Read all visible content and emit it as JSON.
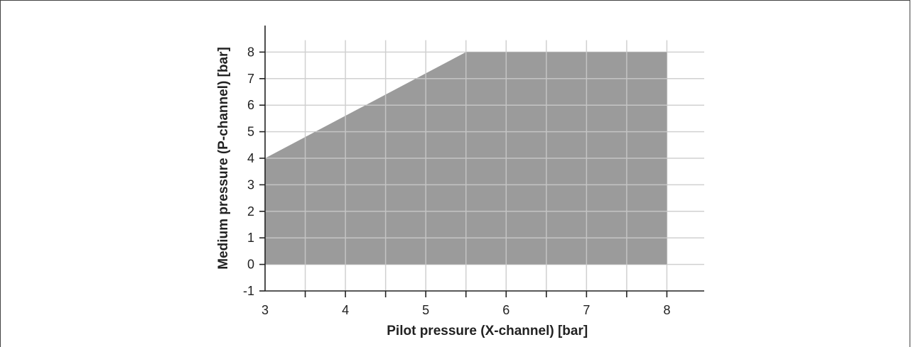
{
  "chart_data": {
    "type": "area",
    "title": "",
    "xlabel": "Pilot pressure (X-channel) [bar]",
    "ylabel": "Medium pressure (P-channel) [bar]",
    "xlim": [
      3,
      8.5
    ],
    "ylim": [
      -1,
      9
    ],
    "x_ticks": [
      3,
      4,
      5,
      6,
      7,
      8
    ],
    "x_tick_labels": [
      "3",
      "4",
      "5",
      "6",
      "7",
      "8"
    ],
    "y_ticks": [
      -1,
      0,
      1,
      2,
      3,
      4,
      5,
      6,
      7,
      8
    ],
    "y_tick_labels": [
      "-1",
      "0",
      "1",
      "2",
      "3",
      "4",
      "5",
      "6",
      "7",
      "8"
    ],
    "x_grid_step": 0.5,
    "grid": true,
    "region": {
      "fill_color": "#9b9b9b",
      "points": [
        {
          "x": 3,
          "y": 0
        },
        {
          "x": 3,
          "y": 4
        },
        {
          "x": 5.5,
          "y": 8
        },
        {
          "x": 8,
          "y": 8
        },
        {
          "x": 8,
          "y": 0
        }
      ]
    },
    "grid_color": "#d0d0d0",
    "axis_color": "#222222"
  }
}
